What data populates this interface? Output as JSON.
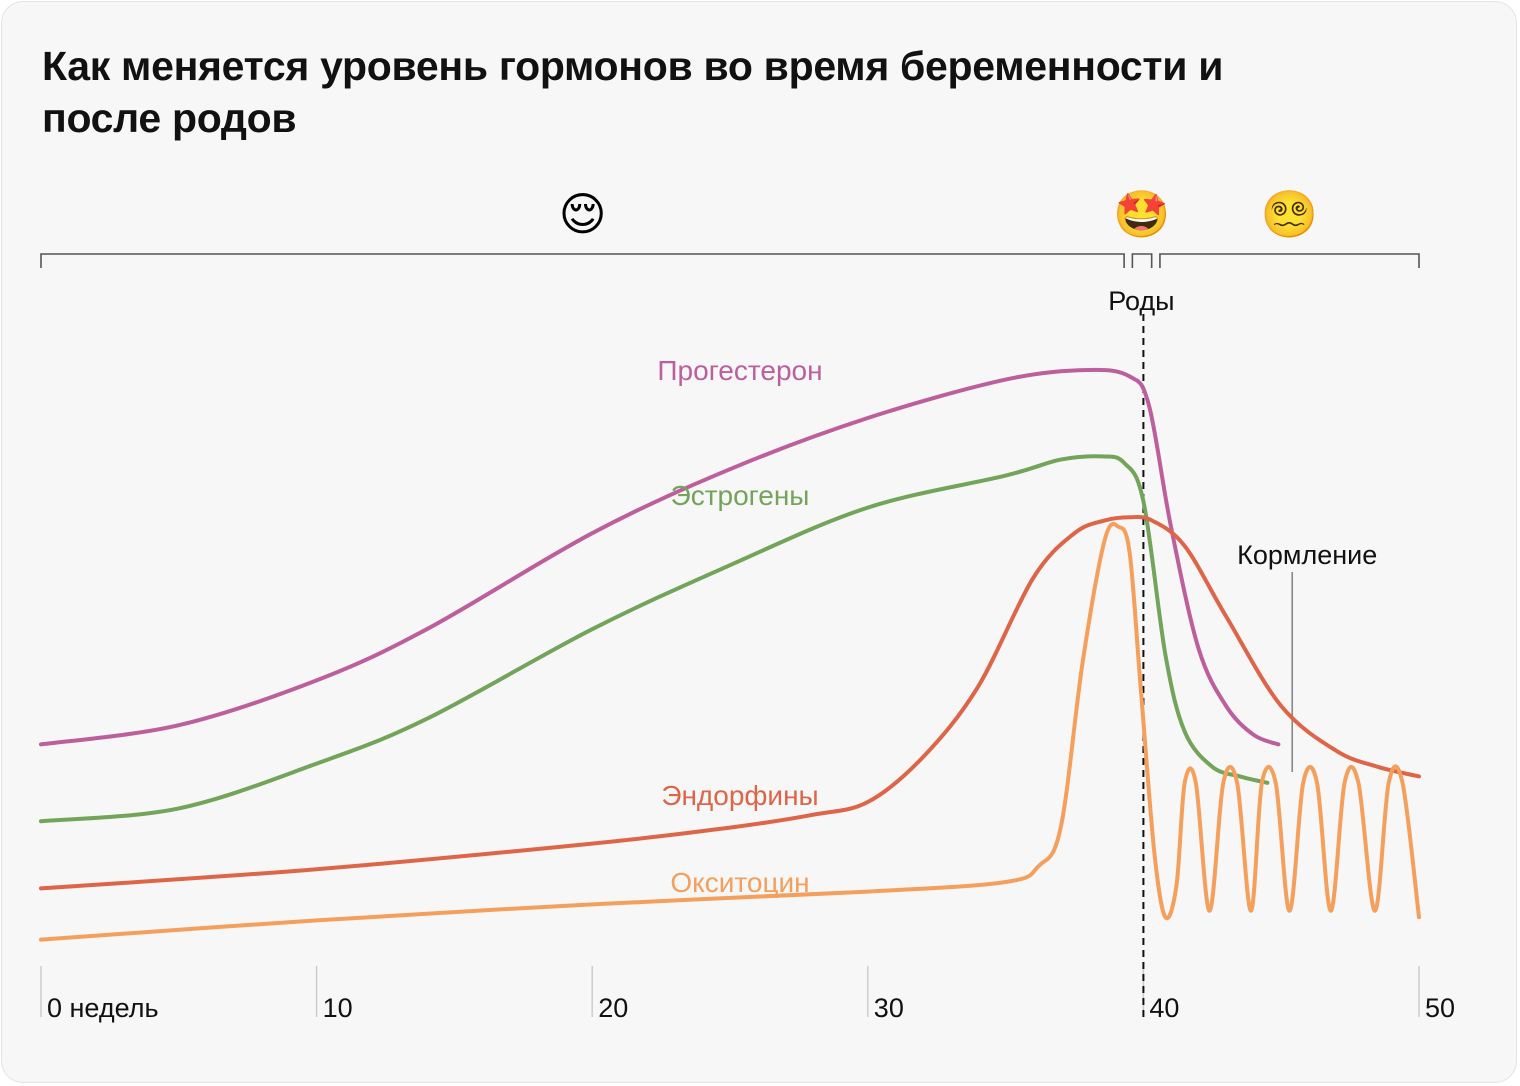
{
  "title": "Как меняется уровень гормонов во время беременности и после родов",
  "chart_data": {
    "type": "line",
    "xlim": [
      0,
      50
    ],
    "ylim": [
      0,
      100
    ],
    "grid": false,
    "x_ticks": [
      {
        "value": 0,
        "label": "0 недель"
      },
      {
        "value": 10,
        "label": "10"
      },
      {
        "value": 20,
        "label": "20"
      },
      {
        "value": 30,
        "label": "30"
      },
      {
        "value": 40,
        "label": "40"
      },
      {
        "value": 50,
        "label": "50"
      }
    ],
    "phases": [
      {
        "start": 0,
        "end": 39.3,
        "emoji": "😌"
      },
      {
        "start": 39.6,
        "end": 40.3,
        "emoji": "🤩"
      },
      {
        "start": 40.6,
        "end": 50,
        "emoji": "😵‍💫"
      }
    ],
    "annotations": [
      {
        "x": 40,
        "label": "Роды"
      },
      {
        "x": 45.4,
        "y": 30,
        "label": "Кормление"
      }
    ],
    "series": [
      {
        "name": "Прогестерон",
        "color": "#bd5f9c",
        "x": [
          0,
          5,
          10,
          14,
          20,
          25,
          30,
          35,
          38,
          39.5,
          40.2,
          41,
          42,
          43,
          44,
          44.9
        ],
        "y": [
          34,
          37,
          44,
          52,
          67,
          77,
          85,
          91,
          92.5,
          91.5,
          87,
          68,
          49,
          40,
          35.5,
          34
        ]
      },
      {
        "name": "Эстрогены",
        "color": "#72a45a",
        "x": [
          0,
          5,
          10,
          14,
          20,
          25,
          30,
          35,
          37,
          38.5,
          39.3,
          40,
          40.8,
          41.5,
          42.5,
          43.5,
          44.5
        ],
        "y": [
          22,
          24,
          31,
          38,
          52,
          62,
          71,
          76,
          78.5,
          79,
          78,
          72,
          48,
          36,
          30.5,
          29,
          28
        ]
      },
      {
        "name": "Эндорфины",
        "color": "#de6548",
        "x": [
          0,
          10,
          20,
          25,
          28,
          30,
          32,
          34,
          36,
          37.5,
          38.6,
          39.5,
          40.3,
          41.5,
          43,
          45,
          47,
          48.5,
          50
        ],
        "y": [
          11.5,
          14.5,
          18.5,
          21,
          23,
          25,
          32,
          43,
          60,
          67,
          69,
          69.5,
          69,
          65,
          54,
          40,
          33,
          30.5,
          29
        ]
      },
      {
        "name": "Окситоцин",
        "color": "#f59f5c",
        "x": [
          0,
          10,
          20,
          30,
          35,
          36.2,
          37,
          37.8,
          38.6,
          39.1,
          39.5,
          39.9,
          40.4,
          40.8,
          41.2,
          41.5,
          41.9,
          42.4,
          42.9,
          43.4,
          43.9,
          44.3,
          44.8,
          45.3,
          45.8,
          46.3,
          46.8,
          47.3,
          47.8,
          48.4,
          48.9,
          49.4,
          50
        ],
        "y": [
          3.5,
          6.5,
          9,
          11,
          12.5,
          15,
          21,
          47,
          66,
          68,
          64,
          43,
          17,
          7,
          12,
          28,
          28,
          8,
          28,
          28,
          8,
          28,
          28,
          8,
          28,
          28,
          8,
          28,
          28,
          8,
          28,
          28,
          7
        ]
      }
    ]
  }
}
